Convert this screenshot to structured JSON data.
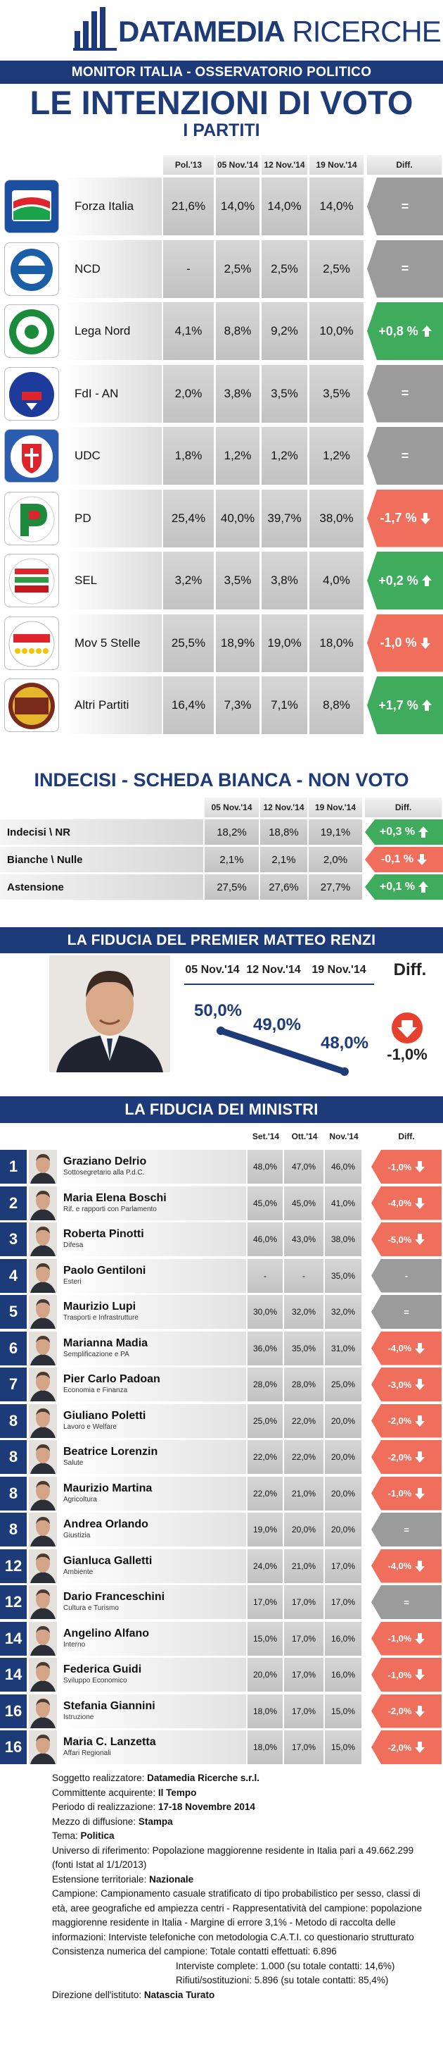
{
  "header": {
    "brand_bold": "DATAMEDIA",
    "brand_light": "RICERCHE",
    "banner": "MONITOR ITALIA - OSSERVATORIO POLITICO",
    "title": "LE INTENZIONI DI VOTO",
    "subtitle": "I PARTITI"
  },
  "parties": {
    "columns": [
      "Pol.'13",
      "05 Nov.'14",
      "12 Nov.'14",
      "19 Nov.'14",
      "Diff."
    ],
    "rows": [
      {
        "name": "Forza Italia",
        "values": [
          "21,6%",
          "14,0%",
          "14,0%",
          "14,0%"
        ],
        "diff": "="
      },
      {
        "name": "NCD",
        "values": [
          "-",
          "2,5%",
          "2,5%",
          "2,5%"
        ],
        "diff": "="
      },
      {
        "name": "Lega Nord",
        "values": [
          "4,1%",
          "8,8%",
          "9,2%",
          "10,0%"
        ],
        "diff": "+0,8 %"
      },
      {
        "name": "FdI - AN",
        "values": [
          "2,0%",
          "3,8%",
          "3,5%",
          "3,5%"
        ],
        "diff": "="
      },
      {
        "name": "UDC",
        "values": [
          "1,8%",
          "1,2%",
          "1,2%",
          "1,2%"
        ],
        "diff": "="
      },
      {
        "name": "PD",
        "values": [
          "25,4%",
          "40,0%",
          "39,7%",
          "38,0%"
        ],
        "diff": "-1,7 %"
      },
      {
        "name": "SEL",
        "values": [
          "3,2%",
          "3,5%",
          "3,8%",
          "4,0%"
        ],
        "diff": "+0,2 %"
      },
      {
        "name": "Mov 5 Stelle",
        "values": [
          "25,5%",
          "18,9%",
          "19,0%",
          "18,0%"
        ],
        "diff": "-1,0 %"
      },
      {
        "name": "Altri Partiti",
        "values": [
          "16,4%",
          "7,3%",
          "7,1%",
          "8,8%"
        ],
        "diff": "+1,7 %"
      }
    ]
  },
  "undecided": {
    "title": "INDECISI - SCHEDA BIANCA - NON VOTO",
    "columns": [
      "05 Nov.'14",
      "12 Nov.'14",
      "19 Nov.'14",
      "Diff."
    ],
    "rows": [
      {
        "name": "Indecisi \\ NR",
        "values": [
          "18,2%",
          "18,8%",
          "19,1%"
        ],
        "diff": "+0,3 %"
      },
      {
        "name": "Bianche \\ Nulle",
        "values": [
          "2,1%",
          "2,1%",
          "2,0%"
        ],
        "diff": "-0,1 %"
      },
      {
        "name": "Astensione",
        "values": [
          "27,5%",
          "27,6%",
          "27,7%"
        ],
        "diff": "+0,1 %"
      }
    ]
  },
  "premier": {
    "title": "LA FIDUCIA DEL PREMIER MATTEO RENZI",
    "columns": [
      "05 Nov.'14",
      "12 Nov.'14",
      "19 Nov.'14",
      "Diff."
    ],
    "values": [
      "50,0%",
      "49,0%",
      "48,0%"
    ],
    "diff": "-1,0%"
  },
  "ministers": {
    "title": "LA FIDUCIA DEI MINISTRI",
    "columns": [
      "Set.'14",
      "Ott.'14",
      "Nov.'14",
      "Diff."
    ],
    "rows": [
      {
        "rank": "1",
        "name": "Graziano Delrio",
        "role": "Sottosegretario alla P.d.C.",
        "values": [
          "48,0%",
          "47,0%",
          "46,0%"
        ],
        "diff": "-1,0%"
      },
      {
        "rank": "2",
        "name": "Maria Elena Boschi",
        "role": "Rif. e rapporti con Parlamento",
        "values": [
          "45,0%",
          "45,0%",
          "41,0%"
        ],
        "diff": "-4,0%"
      },
      {
        "rank": "3",
        "name": "Roberta Pinotti",
        "role": "Difesa",
        "values": [
          "46,0%",
          "43,0%",
          "38,0%"
        ],
        "diff": "-5,0%"
      },
      {
        "rank": "4",
        "name": "Paolo Gentiloni",
        "role": "Esteri",
        "values": [
          "-",
          "-",
          "35,0%"
        ],
        "diff": "-"
      },
      {
        "rank": "5",
        "name": "Maurizio Lupi",
        "role": "Trasporti e Infrastrutture",
        "values": [
          "30,0%",
          "32,0%",
          "32,0%"
        ],
        "diff": "="
      },
      {
        "rank": "6",
        "name": "Marianna Madia",
        "role": "Semplificazione e PA",
        "values": [
          "36,0%",
          "35,0%",
          "31,0%"
        ],
        "diff": "-4,0%"
      },
      {
        "rank": "7",
        "name": "Pier Carlo Padoan",
        "role": "Economia e Finanza",
        "values": [
          "28,0%",
          "28,0%",
          "25,0%"
        ],
        "diff": "-3,0%"
      },
      {
        "rank": "8",
        "name": "Giuliano Poletti",
        "role": "Lavoro e Welfare",
        "values": [
          "25,0%",
          "22,0%",
          "20,0%"
        ],
        "diff": "-2,0%"
      },
      {
        "rank": "8",
        "name": "Beatrice Lorenzin",
        "role": "Salute",
        "values": [
          "22,0%",
          "22,0%",
          "20,0%"
        ],
        "diff": "-2,0%"
      },
      {
        "rank": "8",
        "name": "Maurizio Martina",
        "role": "Agricoltura",
        "values": [
          "22,0%",
          "21,0%",
          "20,0%"
        ],
        "diff": "-1,0%"
      },
      {
        "rank": "8",
        "name": "Andrea Orlando",
        "role": "Giustizia",
        "values": [
          "19,0%",
          "20,0%",
          "20,0%"
        ],
        "diff": "="
      },
      {
        "rank": "12",
        "name": "Gianluca Galletti",
        "role": "Ambiente",
        "values": [
          "24,0%",
          "21,0%",
          "17,0%"
        ],
        "diff": "-4,0%"
      },
      {
        "rank": "12",
        "name": "Dario Franceschini",
        "role": "Cultura e Turismo",
        "values": [
          "17,0%",
          "17,0%",
          "17,0%"
        ],
        "diff": "="
      },
      {
        "rank": "14",
        "name": "Angelino Alfano",
        "role": "Interno",
        "values": [
          "15,0%",
          "17,0%",
          "16,0%"
        ],
        "diff": "-1,0%"
      },
      {
        "rank": "14",
        "name": "Federica Guidi",
        "role": "Sviluppo Economico",
        "values": [
          "20,0%",
          "17,0%",
          "16,0%"
        ],
        "diff": "-1,0%"
      },
      {
        "rank": "16",
        "name": "Stefania Giannini",
        "role": "Istruzione",
        "values": [
          "18,0%",
          "17,0%",
          "15,0%"
        ],
        "diff": "-2,0%"
      },
      {
        "rank": "16",
        "name": "Maria C. Lanzetta",
        "role": "Affari Regionali",
        "values": [
          "18,0%",
          "17,0%",
          "15,0%"
        ],
        "diff": "-2,0%"
      }
    ]
  },
  "footer": {
    "lines": [
      {
        "label": "Soggetto realizzatore:",
        "value": "Datamedia Ricerche s.r.l."
      },
      {
        "label": "Committente acquirente:",
        "value": "Il Tempo"
      },
      {
        "label": "Periodo di realizzazione:",
        "value": "17-18 Novembre 2014"
      },
      {
        "label": "Mezzo di diffusione:",
        "value": "Stampa"
      },
      {
        "label": "Tema:",
        "value": "Politica"
      },
      {
        "label": "Universo di riferimento:",
        "value": "Popolazione maggiorenne residente in Italia pari a 49.662.299 (fonti Istat al 1/1/2013)"
      },
      {
        "label": "Estensione territoriale:",
        "value": "Nazionale"
      },
      {
        "label": "Campione:",
        "value": "Campionamento casuale stratificato di tipo probabilistico per sesso, classi di età, aree geografiche ed ampiezza centri - Rappresentatività del campione: popolazione maggiorenne residente in Italia - Margine di errore 3,1% - Metodo di raccolta delle informazioni: Interviste telefoniche con metodologia C.A.T.I. co questionario strutturato"
      },
      {
        "label": "Consistenza numerica del campione:",
        "value": "Totale contatti effettuati: 6.896"
      },
      {
        "value": "Interviste complete: 1.000 (su totale contatti: 14,6%)"
      },
      {
        "value": "Rifiuti/sostituzioni: 5.896 (su totale contatti: 85,4%)"
      },
      {
        "label": "Direzione dell'istituto:",
        "value": "Natascia Turato"
      }
    ]
  }
}
